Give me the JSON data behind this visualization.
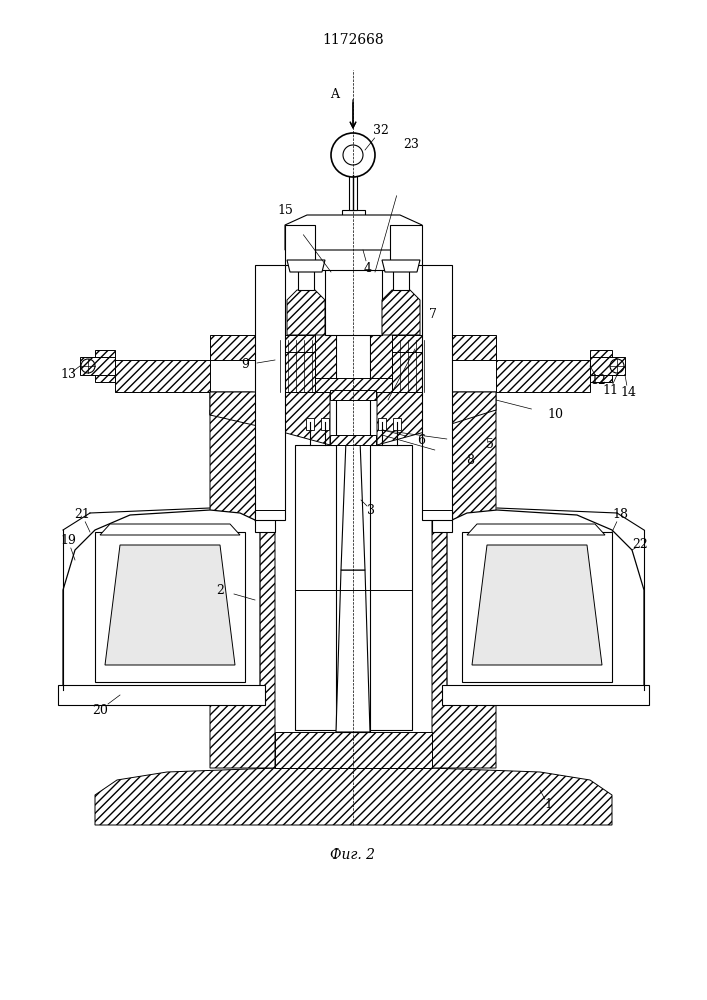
{
  "title": "1172668",
  "caption": "Фиг. 2",
  "bg_color": "#ffffff",
  "line_color": "#000000",
  "title_fontsize": 10,
  "caption_fontsize": 10
}
